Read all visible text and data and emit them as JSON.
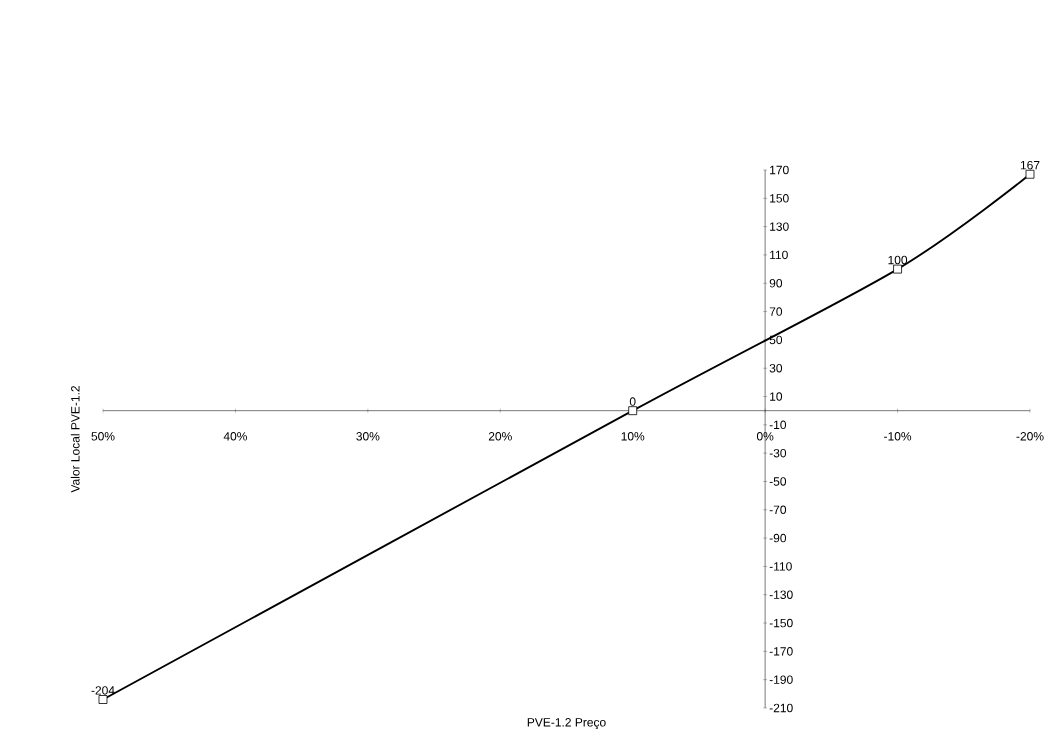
{
  "chart_data": {
    "type": "line",
    "xlabel": "PVE-1.2 Preço",
    "ylabel": "Valor Local PVE-1.2",
    "x": [
      50,
      10,
      -10,
      -20
    ],
    "series": [
      {
        "color": "#000000",
        "values": [
          -204,
          0,
          100,
          167
        ]
      }
    ],
    "xlim": [
      50,
      -20
    ],
    "xticks": [
      {
        "value": 50,
        "label": "50%"
      },
      {
        "value": 40,
        "label": "40%"
      },
      {
        "value": 30,
        "label": "30%"
      },
      {
        "value": 20,
        "label": "20%"
      },
      {
        "value": 10,
        "label": "10%"
      },
      {
        "value": 0,
        "label": "0%"
      },
      {
        "value": -10,
        "label": "-10%"
      },
      {
        "value": -20,
        "label": "-20%"
      }
    ],
    "ylim": [
      -210,
      170
    ],
    "yticks": [
      170,
      150,
      130,
      110,
      90,
      70,
      50,
      30,
      10,
      -10,
      -30,
      -50,
      -70,
      -90,
      -110,
      -130,
      -150,
      -170,
      -190,
      -210
    ],
    "data_labels": true,
    "marker": "square",
    "line_style": "solid"
  }
}
